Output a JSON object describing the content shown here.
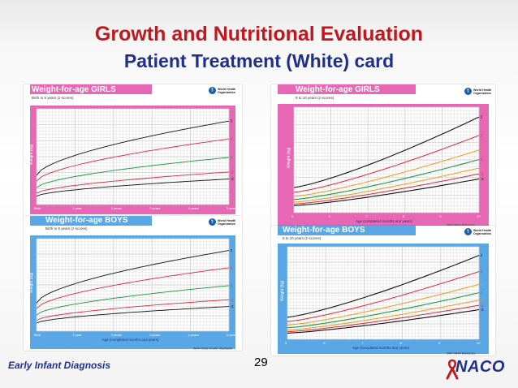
{
  "slide": {
    "title": "Growth and Nutritional Evaluation",
    "subtitle": "Patient Treatment (White) card",
    "footer_left": "Early Infant Diagnosis",
    "page_number": "29",
    "logo_text": "NACO"
  },
  "charts": [
    {
      "title": "Weight-for-age GIRLS",
      "subtitle": "Birth to 5 years (z-scores)",
      "org": "World Health\nOrganization",
      "header_color": "#e667b3",
      "scheme": "pink",
      "x_ticks": [
        "Birth",
        "1 year",
        "2 years",
        "3 years",
        "4 years",
        "5 years"
      ],
      "x_label": "",
      "y_label": "Weight (kg)",
      "ref": "",
      "curve_labels": [
        "3",
        "2",
        "0",
        "-2",
        "-3"
      ]
    },
    {
      "title": "Weight-for-age  GIRLS",
      "subtitle": "5 to 10 years (z-scores)",
      "org": "World Health\nOrganization",
      "header_color": "#e667b3",
      "scheme": "color",
      "x_ticks": [
        "5",
        "6",
        "7",
        "8",
        "9",
        "10"
      ],
      "x_label": "Age (completed months and years)",
      "y_label": "Weight (kg)",
      "ref": "2007 WHO Reference",
      "curve_labels": [
        "3",
        "2",
        "1",
        "0",
        "-1",
        "-2",
        "-3"
      ]
    },
    {
      "title": "Weight-for-age BOYS",
      "subtitle": "Birth to 5 years (z-scores)",
      "org": "World Health\nOrganization",
      "header_color": "#5aa7e6",
      "scheme": "pink",
      "x_ticks": [
        "Birth",
        "1 year",
        "2 years",
        "3 years",
        "4 years",
        "5 years"
      ],
      "x_label": "Age (completed months and years)",
      "y_label": "Weight (kg)",
      "ref": "WHO Child Growth Standards",
      "curve_labels": [
        "3",
        "2",
        "0",
        "-2",
        "-3"
      ]
    },
    {
      "title": "Weight-for-age  BOYS",
      "subtitle": "5 to 10 years (z-scores)",
      "org": "World Health\nOrganization",
      "header_color": "#5aa7e6",
      "scheme": "color",
      "x_ticks": [
        "5",
        "6",
        "7",
        "8",
        "9",
        "10"
      ],
      "x_label": "Age (completed months and years)",
      "y_label": "Weight (kg)",
      "ref": "2007 WHO Reference",
      "curve_labels": [
        "3",
        "2",
        "1",
        "0",
        "-1",
        "-2",
        "-3"
      ]
    }
  ],
  "colors": {
    "title_red": "#c0181f",
    "title_blue": "#1f2f8a",
    "curve_black": "#111111",
    "curve_red": "#e0283a",
    "curve_orange": "#f09a1e",
    "curve_green": "#1a9a3a",
    "curve_teal": "#2a9a78"
  }
}
